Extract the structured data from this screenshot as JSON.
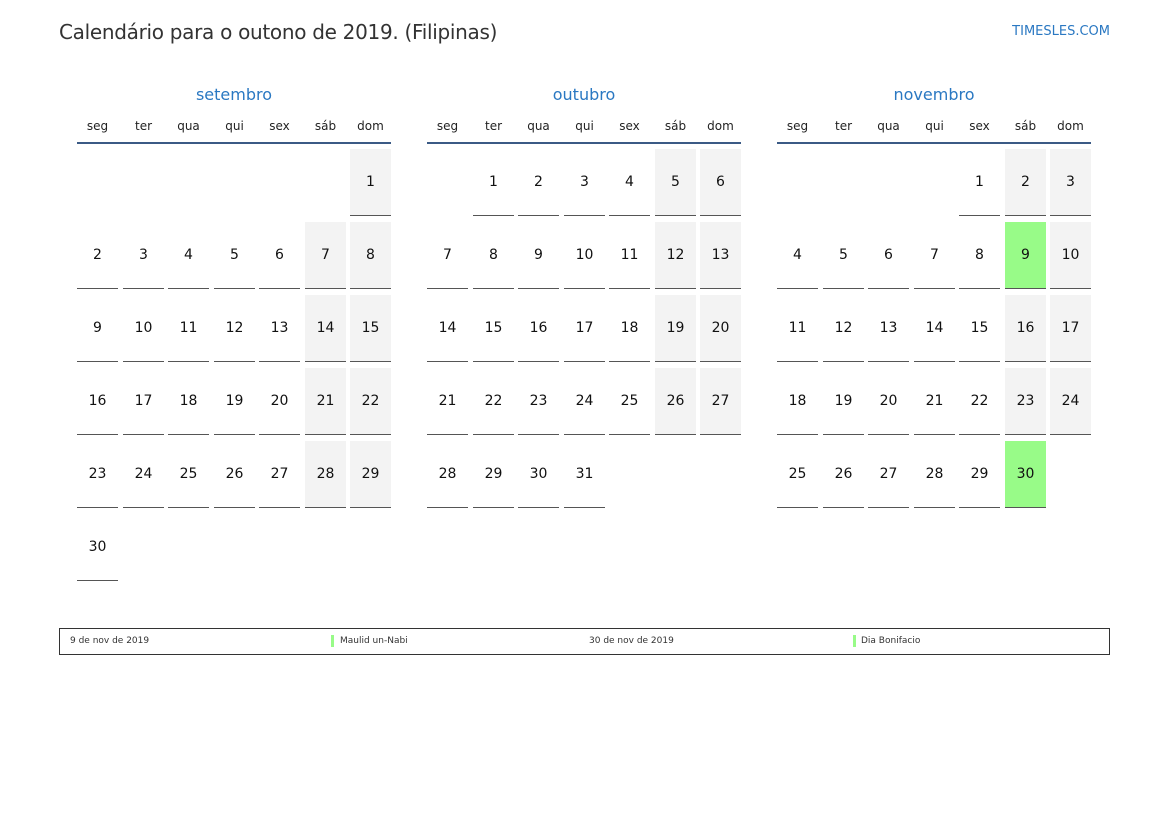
{
  "title": "Calendário para o outono de 2019. (Filipinas)",
  "brand": "TIMESLES.COM",
  "weekdays": [
    "seg",
    "ter",
    "qua",
    "qui",
    "sex",
    "sáb",
    "dom"
  ],
  "colors": {
    "accent": "#2a78c2",
    "holiday": "#98fb88",
    "weekend": "#f3f3f3"
  },
  "months": [
    {
      "name": "setembro",
      "weeks": [
        [
          null,
          null,
          null,
          null,
          null,
          null,
          1
        ],
        [
          2,
          3,
          4,
          5,
          6,
          7,
          8
        ],
        [
          9,
          10,
          11,
          12,
          13,
          14,
          15
        ],
        [
          16,
          17,
          18,
          19,
          20,
          21,
          22
        ],
        [
          23,
          24,
          25,
          26,
          27,
          28,
          29
        ],
        [
          30,
          null,
          null,
          null,
          null,
          null,
          null
        ]
      ],
      "holidays": []
    },
    {
      "name": "outubro",
      "weeks": [
        [
          null,
          1,
          2,
          3,
          4,
          5,
          6
        ],
        [
          7,
          8,
          9,
          10,
          11,
          12,
          13
        ],
        [
          14,
          15,
          16,
          17,
          18,
          19,
          20
        ],
        [
          21,
          22,
          23,
          24,
          25,
          26,
          27
        ],
        [
          28,
          29,
          30,
          31,
          null,
          null,
          null
        ]
      ],
      "holidays": []
    },
    {
      "name": "novembro",
      "weeks": [
        [
          null,
          null,
          null,
          null,
          1,
          2,
          3
        ],
        [
          4,
          5,
          6,
          7,
          8,
          9,
          10
        ],
        [
          11,
          12,
          13,
          14,
          15,
          16,
          17
        ],
        [
          18,
          19,
          20,
          21,
          22,
          23,
          24
        ],
        [
          25,
          26,
          27,
          28,
          29,
          30,
          null
        ]
      ],
      "holidays": [
        9,
        30
      ]
    }
  ],
  "legend": [
    {
      "date": "9 de nov de 2019",
      "name": "Maulid un-Nabi"
    },
    {
      "date": "30 de nov de 2019",
      "name": "Dia Bonifacio"
    }
  ]
}
